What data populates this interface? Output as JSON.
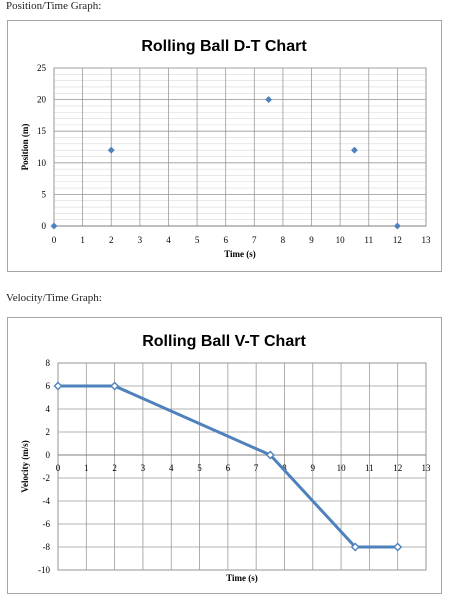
{
  "labels": {
    "position_section": "Position/Time Graph:",
    "velocity_section": "Velocity/Time Graph:"
  },
  "chart_data": [
    {
      "type": "scatter",
      "title": "Rolling Ball D-T Chart",
      "xlabel": "Time (s)",
      "ylabel": "Position (m)",
      "xlim": [
        0,
        13
      ],
      "ylim": [
        0,
        25
      ],
      "xticks": [
        0,
        1,
        2,
        3,
        4,
        5,
        6,
        7,
        8,
        9,
        10,
        11,
        12,
        13
      ],
      "yticks": [
        0,
        5,
        10,
        15,
        20,
        25
      ],
      "grid": true,
      "marker_color": "#4f81bd",
      "series": [
        {
          "x": [
            0,
            2,
            7.5,
            10.5,
            12
          ],
          "y": [
            0,
            12,
            20,
            12,
            0
          ]
        }
      ]
    },
    {
      "type": "line",
      "title": "Rolling Ball V-T Chart",
      "xlabel": "Time (s)",
      "ylabel": "Velocity (m/s)",
      "xlim": [
        0,
        13
      ],
      "ylim": [
        -10,
        8
      ],
      "xticks": [
        0,
        1,
        2,
        3,
        4,
        5,
        6,
        7,
        8,
        9,
        10,
        11,
        12,
        13
      ],
      "yticks": [
        -10,
        -8,
        -6,
        -4,
        -2,
        0,
        2,
        4,
        6,
        8
      ],
      "grid": true,
      "line_color": "#4f81bd",
      "series": [
        {
          "x": [
            0,
            2,
            7.5,
            10.5,
            12
          ],
          "y": [
            6,
            6,
            0,
            -8,
            -8
          ]
        }
      ]
    }
  ]
}
